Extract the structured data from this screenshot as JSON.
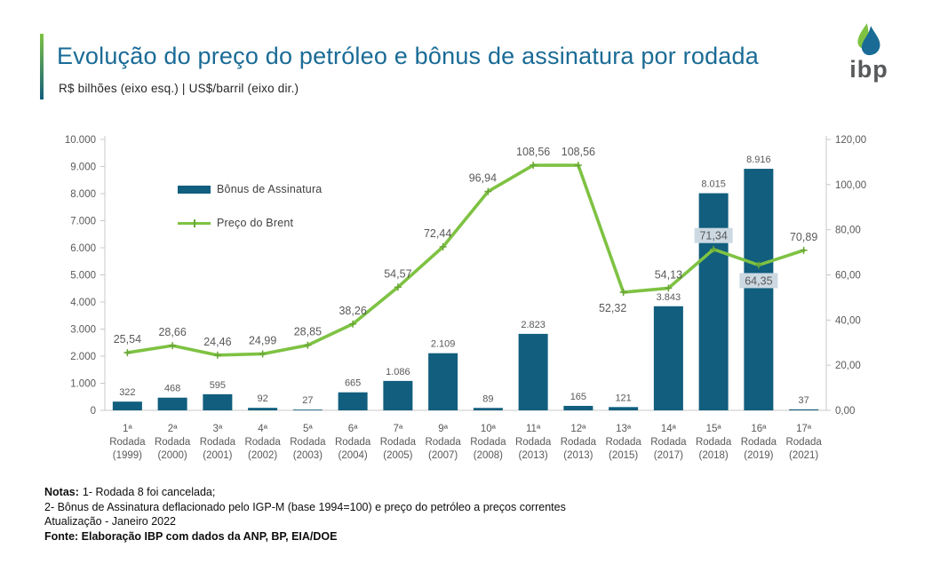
{
  "header": {
    "title": "Evolução do preço do petróleo e bônus de assinatura por rodada",
    "subtitle": "R$ bilhões (eixo esq.) | US$/barril (eixo dir.)",
    "logo_text": "ibp"
  },
  "colors": {
    "bar": "#115e7e",
    "line": "#7ec242",
    "marker": "#69a636",
    "title": "#1a6b96",
    "axis_text": "#595959",
    "axis_line": "#c9c9c9",
    "label_bg": "#ccd9e2",
    "accent_green": "#7ec242",
    "accent_blue": "#115e7e",
    "logo_text": "#58595b"
  },
  "notes": {
    "prefix": "Notas:",
    "note1": "1- Rodada 8 foi cancelada;",
    "note2": "2- Bônus de Assinatura deflacionado pelo IGP-M (base 1994=100) e preço do petróleo a preços correntes",
    "note3": "Atualização - Janeiro 2022",
    "source": "Fonte: Elaboração IBP com dados da ANP, BP, EIA/DOE"
  },
  "chart_data": {
    "type": "bar",
    "title": "Evolução do preço do petróleo e bônus de assinatura por rodada",
    "categories": [
      [
        "1ª",
        "Rodada",
        "(1999)"
      ],
      [
        "2ª",
        "Rodada",
        "(2000)"
      ],
      [
        "3ª",
        "Rodada",
        "(2001)"
      ],
      [
        "4ª",
        "Rodada",
        "(2002)"
      ],
      [
        "5ª",
        "Rodada",
        "(2003)"
      ],
      [
        "6ª",
        "Rodada",
        "(2004)"
      ],
      [
        "7ª",
        "Rodada",
        "(2005)"
      ],
      [
        "9ª",
        "Rodada",
        "(2007)"
      ],
      [
        "10ª",
        "Rodada",
        "(2008)"
      ],
      [
        "11ª",
        "Rodada",
        "(2013)"
      ],
      [
        "12ª",
        "Rodada",
        "(2013)"
      ],
      [
        "13ª",
        "Rodada",
        "(2015)"
      ],
      [
        "14ª",
        "Rodada",
        "(2017)"
      ],
      [
        "15ª",
        "Rodada",
        "(2018)"
      ],
      [
        "16ª",
        "Rodada",
        "(2019)"
      ],
      [
        "17ª",
        "Rodada",
        "(2021)"
      ]
    ],
    "series": [
      {
        "name": "Bônus de Assinatura",
        "type": "bar",
        "axis": "left",
        "values": [
          322,
          468,
          595,
          92,
          27,
          665,
          1086,
          2109,
          89,
          2823,
          165,
          121,
          3843,
          8015,
          8916,
          37
        ],
        "labels": [
          "322",
          "468",
          "595",
          "92",
          "27",
          "665",
          "1.086",
          "2.109",
          "89",
          "2.823",
          "165",
          "121",
          "3.843",
          "8.015",
          "8.916",
          "37"
        ]
      },
      {
        "name": "Preço do Brent",
        "type": "line",
        "axis": "right",
        "values": [
          25.54,
          28.66,
          24.46,
          24.99,
          28.85,
          38.26,
          54.57,
          72.44,
          96.94,
          108.56,
          108.56,
          52.32,
          54.13,
          71.34,
          64.35,
          70.89
        ],
        "labels": [
          "25,54",
          "28,66",
          "24,46",
          "24,99",
          "28,85",
          "38,26",
          "54,57",
          "72,44",
          "96,94",
          "108,56",
          "108,56",
          "52,32",
          "54,13",
          "71,34",
          "64,35",
          "70,89"
        ],
        "label_pos": [
          "above",
          "above",
          "above",
          "above",
          "above",
          "above",
          "above",
          "above",
          "above",
          "above",
          "above",
          "below",
          "above",
          "above-bg",
          "below-bg",
          "above"
        ],
        "label_dx": [
          0,
          0,
          0,
          0,
          0,
          0,
          0,
          -6,
          -6,
          0,
          0,
          -12,
          0,
          0,
          0,
          0
        ]
      }
    ],
    "axes": {
      "left": {
        "min": 0,
        "max": 10000,
        "ticks": [
          "0",
          "1.000",
          "2.000",
          "3.000",
          "4.000",
          "5.000",
          "6.000",
          "7.000",
          "8.000",
          "9.000",
          "10.000"
        ]
      },
      "right": {
        "min": 0,
        "max": 120,
        "ticks": [
          "0,00",
          "20,00",
          "40,00",
          "60,00",
          "80,00",
          "100,00",
          "120,00"
        ]
      }
    },
    "grid": false,
    "legend_position": "inside-top-left"
  }
}
